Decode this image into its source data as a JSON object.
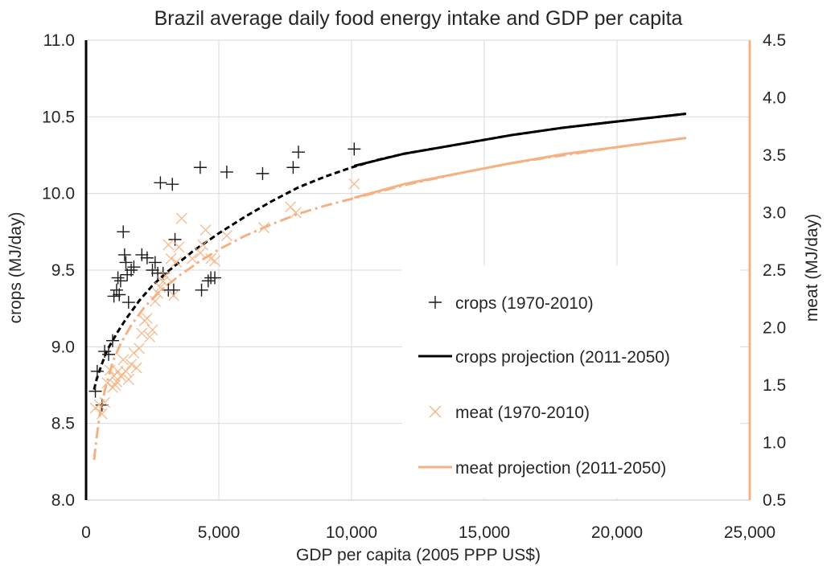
{
  "chart_data": {
    "type": "scatter",
    "title": "Brazil average daily food energy intake and GDP per capita",
    "xlabel": "GDP per capita (2005 PPP US$)",
    "ylabel_left": "crops (MJ/day)",
    "ylabel_right": "meat (MJ/day)",
    "xlim": [
      0,
      25000
    ],
    "ylim_left": [
      8.0,
      11.0
    ],
    "ylim_right": [
      0.5,
      4.5
    ],
    "x_ticks": [
      "0",
      "5,000",
      "10,000",
      "15,000",
      "20,000",
      "25,000"
    ],
    "y_left_ticks": [
      "8.0",
      "8.5",
      "9.0",
      "9.5",
      "10.0",
      "10.5",
      "11.0"
    ],
    "y_right_ticks": [
      "0.5",
      "1.0",
      "1.5",
      "2.0",
      "2.5",
      "3.0",
      "3.5",
      "4.0",
      "4.5"
    ],
    "grid": true,
    "legend_position": "center-right",
    "colors": {
      "crops": "#000000",
      "meat": "#f4b183",
      "grid": "#d9d9d9",
      "text": "#262626"
    },
    "series": [
      {
        "name": "crops (1970-2010)",
        "axis": "left",
        "marker": "plus",
        "points": [
          [
            350,
            8.71
          ],
          [
            420,
            8.84
          ],
          [
            600,
            8.62
          ],
          [
            700,
            8.97
          ],
          [
            850,
            8.95
          ],
          [
            1000,
            9.04
          ],
          [
            1050,
            9.33
          ],
          [
            1150,
            9.37
          ],
          [
            1200,
            9.45
          ],
          [
            1250,
            9.34
          ],
          [
            1300,
            9.43
          ],
          [
            1400,
            9.75
          ],
          [
            1450,
            9.6
          ],
          [
            1500,
            9.55
          ],
          [
            1550,
            9.47
          ],
          [
            1600,
            9.29
          ],
          [
            1700,
            9.5
          ],
          [
            1800,
            9.52
          ],
          [
            2100,
            9.6
          ],
          [
            2300,
            9.58
          ],
          [
            2500,
            9.5
          ],
          [
            2600,
            9.55
          ],
          [
            2700,
            9.48
          ],
          [
            2800,
            10.07
          ],
          [
            2900,
            9.48
          ],
          [
            3100,
            9.37
          ],
          [
            3250,
            10.06
          ],
          [
            3300,
            9.37
          ],
          [
            3350,
            9.7
          ],
          [
            4300,
            10.17
          ],
          [
            4350,
            9.37
          ],
          [
            4600,
            9.43
          ],
          [
            4700,
            9.45
          ],
          [
            4850,
            9.45
          ],
          [
            5300,
            10.14
          ],
          [
            6650,
            10.13
          ],
          [
            7800,
            10.17
          ],
          [
            8000,
            10.27
          ],
          [
            10100,
            10.29
          ]
        ]
      },
      {
        "name": "meat (1970-2010)",
        "axis": "right",
        "marker": "cross",
        "points": [
          [
            350,
            1.3
          ],
          [
            500,
            1.33
          ],
          [
            600,
            1.25
          ],
          [
            700,
            1.35
          ],
          [
            800,
            1.52
          ],
          [
            900,
            1.63
          ],
          [
            1000,
            1.48
          ],
          [
            1050,
            1.58
          ],
          [
            1100,
            1.5
          ],
          [
            1150,
            1.53
          ],
          [
            1200,
            1.62
          ],
          [
            1300,
            1.58
          ],
          [
            1400,
            1.72
          ],
          [
            1500,
            1.62
          ],
          [
            1600,
            1.55
          ],
          [
            1700,
            1.68
          ],
          [
            1800,
            1.78
          ],
          [
            1900,
            1.65
          ],
          [
            2000,
            1.82
          ],
          [
            2100,
            1.95
          ],
          [
            2200,
            2.06
          ],
          [
            2300,
            2.08
          ],
          [
            2400,
            1.92
          ],
          [
            2500,
            1.98
          ],
          [
            2600,
            2.23
          ],
          [
            2700,
            2.3
          ],
          [
            2800,
            2.35
          ],
          [
            2900,
            2.4
          ],
          [
            3000,
            2.45
          ],
          [
            3100,
            2.72
          ],
          [
            3200,
            2.6
          ],
          [
            3300,
            2.28
          ],
          [
            3400,
            2.57
          ],
          [
            3500,
            2.7
          ],
          [
            3600,
            2.95
          ],
          [
            4000,
            2.6
          ],
          [
            4300,
            2.65
          ],
          [
            4400,
            2.72
          ],
          [
            4500,
            2.85
          ],
          [
            4700,
            2.6
          ],
          [
            4850,
            2.58
          ],
          [
            5300,
            2.8
          ],
          [
            6700,
            2.87
          ],
          [
            7700,
            3.05
          ],
          [
            7900,
            3.0
          ],
          [
            10100,
            3.25
          ]
        ]
      },
      {
        "name": "crops projection (2011-2050)",
        "axis": "left",
        "marker": "line",
        "x": [
          10100,
          12000,
          14000,
          16000,
          18000,
          20000,
          22600
        ],
        "values": [
          10.18,
          10.26,
          10.32,
          10.38,
          10.43,
          10.47,
          10.52
        ]
      },
      {
        "name": "meat projection (2011-2050)",
        "axis": "right",
        "marker": "line",
        "x": [
          10100,
          12000,
          14000,
          16000,
          18000,
          20000,
          22600
        ],
        "values": [
          3.13,
          3.25,
          3.34,
          3.43,
          3.51,
          3.57,
          3.65
        ]
      },
      {
        "axis": "left",
        "marker": "fit-dashed",
        "x": [
          300,
          400,
          600,
          800,
          1000,
          1200,
          1500,
          2000,
          2500,
          3000,
          4000,
          5000,
          6000,
          7000,
          8000,
          9000,
          10000,
          11000,
          12000,
          14000,
          16000,
          18000,
          20000,
          22600
        ],
        "values": [
          8.72,
          8.79,
          8.89,
          8.98,
          9.04,
          9.1,
          9.18,
          9.3,
          9.4,
          9.48,
          9.62,
          9.74,
          9.85,
          9.95,
          10.04,
          10.11,
          10.17,
          10.22,
          10.26,
          10.32,
          10.38,
          10.43,
          10.47,
          10.52
        ]
      },
      {
        "axis": "right",
        "marker": "fit-dashdot",
        "x": [
          300,
          400,
          500,
          700,
          1000,
          1300,
          1700,
          2200,
          2800,
          3500,
          4300,
          5000,
          6000,
          7000,
          8000,
          9000,
          10000,
          11000,
          12000,
          14000,
          16000,
          18000,
          20000,
          22600
        ],
        "values": [
          0.85,
          1.05,
          1.22,
          1.45,
          1.7,
          1.86,
          2.02,
          2.18,
          2.32,
          2.45,
          2.58,
          2.68,
          2.8,
          2.9,
          2.99,
          3.06,
          3.12,
          3.18,
          3.24,
          3.34,
          3.43,
          3.5,
          3.57,
          3.65
        ]
      }
    ]
  }
}
